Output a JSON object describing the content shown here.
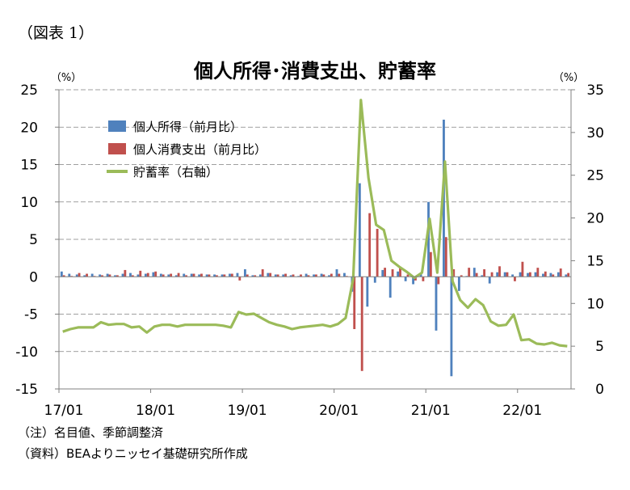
{
  "figure_label": "（図表 1）",
  "footnotes": {
    "note": "（注）名目値、季節調整済",
    "source": "（資料）BEAよりニッセイ基礎研究所作成"
  },
  "colors": {
    "income": "#4F81BD",
    "consumption": "#C0504D",
    "saving": "#9BBB59",
    "grid": "#808080",
    "axis": "#808080"
  },
  "chart_data": {
    "type": "bar+line",
    "title": "個人所得･消費支出、貯蓄率",
    "y_left_unit": "（%）",
    "y_right_unit": "（%）",
    "y_left_range": [
      -15,
      25
    ],
    "y_right_range": [
      0,
      35
    ],
    "y_left_ticks": [
      "25",
      "20",
      "15",
      "10",
      "5",
      "0",
      "-5",
      "-10",
      "-15"
    ],
    "y_right_ticks": [
      "35",
      "30",
      "25",
      "20",
      "15",
      "10",
      "5",
      "0"
    ],
    "x_tick_labels": [
      "17/01",
      "18/01",
      "19/01",
      "20/01",
      "21/01",
      "22/01"
    ],
    "grid": true,
    "legend_position": "top-left",
    "months": [
      "2017-01",
      "2017-02",
      "2017-03",
      "2017-04",
      "2017-05",
      "2017-06",
      "2017-07",
      "2017-08",
      "2017-09",
      "2017-10",
      "2017-11",
      "2017-12",
      "2018-01",
      "2018-02",
      "2018-03",
      "2018-04",
      "2018-05",
      "2018-06",
      "2018-07",
      "2018-08",
      "2018-09",
      "2018-10",
      "2018-11",
      "2018-12",
      "2019-01",
      "2019-02",
      "2019-03",
      "2019-04",
      "2019-05",
      "2019-06",
      "2019-07",
      "2019-08",
      "2019-09",
      "2019-10",
      "2019-11",
      "2019-12",
      "2020-01",
      "2020-02",
      "2020-03",
      "2020-04",
      "2020-05",
      "2020-06",
      "2020-07",
      "2020-08",
      "2020-09",
      "2020-10",
      "2020-11",
      "2020-12",
      "2021-01",
      "2021-02",
      "2021-03",
      "2021-04",
      "2021-05",
      "2021-06",
      "2021-07",
      "2021-08",
      "2021-09",
      "2021-10",
      "2021-11",
      "2021-12",
      "2022-01",
      "2022-02",
      "2022-03",
      "2022-04",
      "2022-05",
      "2022-06",
      "2022-07"
    ],
    "series": [
      {
        "name": "個人所得（前月比）",
        "type": "bar",
        "axis": "left",
        "values": [
          0.7,
          0.4,
          0.3,
          0.2,
          0.4,
          0.3,
          0.4,
          0.2,
          0.4,
          0.5,
          0.3,
          0.4,
          0.6,
          0.4,
          0.3,
          0.2,
          0.4,
          0.4,
          0.3,
          0.3,
          0.3,
          0.3,
          0.4,
          0.5,
          1.0,
          0.2,
          0.3,
          0.5,
          0.3,
          0.3,
          0.2,
          0.1,
          0.4,
          0.3,
          0.4,
          0.2,
          1.0,
          0.5,
          -2.0,
          12.5,
          -4.0,
          -0.8,
          0.9,
          -2.8,
          0.7,
          -0.6,
          -1.0,
          0.4,
          10.0,
          -7.2,
          21.0,
          -13.3,
          -1.9,
          0.1,
          1.2,
          0.2,
          -0.9,
          0.6,
          0.6,
          0.3,
          0.6,
          0.5,
          0.6,
          0.4,
          0.5,
          0.6,
          0.3
        ]
      },
      {
        "name": "個人消費支出（前月比）",
        "type": "bar",
        "axis": "left",
        "values": [
          0.2,
          0.1,
          0.5,
          0.4,
          0.1,
          0.2,
          0.3,
          0.2,
          0.9,
          0.2,
          0.8,
          0.5,
          0.7,
          0.3,
          0.4,
          0.5,
          0.2,
          0.4,
          0.4,
          0.3,
          0.2,
          0.3,
          0.4,
          -0.5,
          0.3,
          0.2,
          1.0,
          0.5,
          0.3,
          0.4,
          0.3,
          0.3,
          0.2,
          0.3,
          0.3,
          0.4,
          0.4,
          0.1,
          -7.0,
          -12.6,
          8.5,
          6.4,
          1.2,
          1.0,
          1.2,
          0.3,
          -0.5,
          -0.6,
          3.3,
          -1.0,
          5.3,
          1.0,
          0.2,
          1.2,
          0.5,
          1.0,
          0.6,
          1.4,
          0.6,
          -0.6,
          2.0,
          0.6,
          1.2,
          0.7,
          0.3,
          1.1,
          0.5
        ]
      },
      {
        "name": "貯蓄率（右軸）",
        "type": "line",
        "axis": "right",
        "values": [
          6.7,
          7.0,
          7.2,
          7.2,
          7.2,
          7.8,
          7.5,
          7.6,
          7.6,
          7.2,
          7.3,
          6.6,
          7.3,
          7.5,
          7.5,
          7.3,
          7.5,
          7.5,
          7.5,
          7.5,
          7.5,
          7.4,
          7.2,
          9.0,
          8.7,
          8.8,
          8.3,
          7.8,
          7.5,
          7.3,
          7.0,
          7.2,
          7.3,
          7.4,
          7.5,
          7.3,
          7.6,
          8.3,
          12.9,
          33.8,
          24.7,
          19.2,
          18.6,
          15.0,
          14.3,
          13.7,
          13.0,
          13.6,
          19.9,
          13.6,
          26.6,
          12.6,
          10.4,
          9.5,
          10.5,
          9.8,
          7.9,
          7.4,
          7.5,
          8.7,
          5.7,
          5.8,
          5.3,
          5.2,
          5.4,
          5.1,
          5.0
        ]
      }
    ]
  }
}
